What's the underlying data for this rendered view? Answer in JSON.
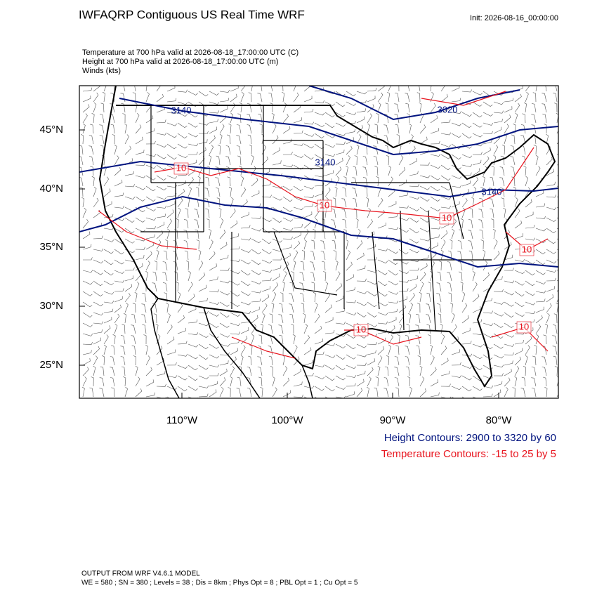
{
  "header": {
    "title": "IWFAQRP Contiguous US Real Time WRF",
    "init": "Init: 2026-08-16_00:00:00"
  },
  "fields": [
    "Temperature at 700 hPa valid at 2026-08-18_17:00:00 UTC   (C)",
    "Height at 700 hPa valid at 2026-08-18_17:00:00 UTC   (m)",
    "Winds   (kts)"
  ],
  "map": {
    "lat_labels": [
      "45°N",
      "40°N",
      "35°N",
      "30°N",
      "25°N"
    ],
    "lon_labels": [
      "110°W",
      "100°W",
      "90°W",
      "80°W"
    ],
    "height_contour_labels": [
      "3140",
      "3020",
      "3140",
      "3140"
    ],
    "temperature_contour_labels": [
      "10",
      "10",
      "10",
      "10",
      "10",
      "10"
    ]
  },
  "legend": {
    "height": "Height Contours: 2900 to 3320 by 60",
    "temperature": "Temperature Contours: -15 to 25 by 5"
  },
  "footer": {
    "model": "OUTPUT FROM WRF V4.6.1 MODEL",
    "settings": "WE = 580 ; SN = 380 ; Levels = 38 ; Dis = 8km ; Phys Opt = 8 ; PBL Opt = 1 ; Cu Opt = 5"
  }
}
